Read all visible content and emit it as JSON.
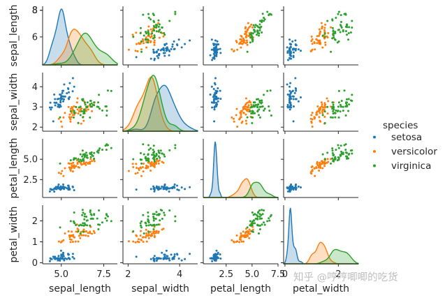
{
  "chart_data": {
    "type": "pairplot",
    "dataset": "iris",
    "variables": [
      "sepal_length",
      "sepal_width",
      "petal_length",
      "petal_width"
    ],
    "axis_labels": {
      "sepal_length": "sepal_length",
      "sepal_width": "sepal_width",
      "petal_length": "petal_length",
      "petal_width": "petal_width"
    },
    "ranges": {
      "sepal_length": [
        3.9,
        8.3
      ],
      "sepal_width": [
        1.8,
        4.7
      ],
      "petal_length": [
        0.3,
        7.5
      ],
      "petal_width": [
        -0.05,
        2.75
      ]
    },
    "yticks": {
      "sepal_length": [
        6,
        8
      ],
      "sepal_width": [
        2,
        3,
        4
      ],
      "petal_length": [
        2.5,
        5.0
      ],
      "petal_width": [
        0,
        1,
        2
      ]
    },
    "ytick_labels": {
      "sepal_length": [
        "6",
        "8"
      ],
      "sepal_width": [
        "2",
        "3",
        "4"
      ],
      "petal_length": [
        "2.5",
        "5.0"
      ],
      "petal_width": [
        "0",
        "1",
        "2"
      ]
    },
    "xticks": {
      "sepal_length": [
        5.0,
        7.5
      ],
      "sepal_width": [
        2,
        4
      ],
      "petal_length": [
        2.5,
        5.0,
        7.5
      ],
      "petal_width": [
        0,
        2
      ]
    },
    "xtick_labels": {
      "sepal_length": [
        "5.0",
        "7.5"
      ],
      "sepal_width": [
        "2",
        "4"
      ],
      "petal_length": [
        "2.5",
        "5.0",
        "7.5"
      ],
      "petal_width": [
        "0",
        "2"
      ]
    },
    "extra_tick_labels": [
      {
        "axis": "sepal_length_y",
        "value": 8,
        "label": "8"
      }
    ],
    "legend": {
      "title": "species",
      "entries": [
        "setosa",
        "versicolor",
        "virginica"
      ],
      "placement": "right"
    },
    "series": [
      {
        "name": "setosa",
        "color": "#1f77b4",
        "sepal_length": [
          5.1,
          4.9,
          4.7,
          4.6,
          5.0,
          5.4,
          4.6,
          5.0,
          4.4,
          4.9,
          5.4,
          4.8,
          4.8,
          4.3,
          5.8,
          5.7,
          5.4,
          5.1,
          5.7,
          5.1,
          5.4,
          5.1,
          4.6,
          5.1,
          4.8,
          5.0,
          5.0,
          5.2,
          5.2,
          4.7,
          4.8,
          5.4,
          5.2,
          5.5,
          4.9,
          5.0,
          5.5,
          4.9,
          4.4,
          5.1,
          5.0,
          4.5,
          4.4,
          5.0,
          5.1,
          4.8,
          5.1,
          4.6,
          5.3,
          5.0
        ],
        "sepal_width": [
          3.5,
          3.0,
          3.2,
          3.1,
          3.6,
          3.9,
          3.4,
          3.4,
          2.9,
          3.1,
          3.7,
          3.4,
          3.0,
          3.0,
          4.0,
          4.4,
          3.9,
          3.5,
          3.8,
          3.8,
          3.4,
          3.7,
          3.6,
          3.3,
          3.4,
          3.0,
          3.4,
          3.5,
          3.4,
          3.2,
          3.1,
          3.4,
          4.1,
          4.2,
          3.1,
          3.2,
          3.5,
          3.6,
          3.0,
          3.4,
          3.5,
          2.3,
          3.2,
          3.5,
          3.8,
          3.0,
          3.8,
          3.2,
          3.7,
          3.3
        ],
        "petal_length": [
          1.4,
          1.4,
          1.3,
          1.5,
          1.4,
          1.7,
          1.4,
          1.5,
          1.4,
          1.5,
          1.5,
          1.6,
          1.4,
          1.1,
          1.2,
          1.5,
          1.3,
          1.4,
          1.7,
          1.5,
          1.7,
          1.5,
          1.0,
          1.7,
          1.9,
          1.6,
          1.6,
          1.5,
          1.4,
          1.6,
          1.6,
          1.5,
          1.5,
          1.4,
          1.5,
          1.2,
          1.3,
          1.4,
          1.3,
          1.5,
          1.3,
          1.3,
          1.3,
          1.6,
          1.9,
          1.4,
          1.6,
          1.4,
          1.5,
          1.4
        ],
        "petal_width": [
          0.2,
          0.2,
          0.2,
          0.2,
          0.2,
          0.4,
          0.3,
          0.2,
          0.2,
          0.1,
          0.2,
          0.2,
          0.1,
          0.1,
          0.2,
          0.4,
          0.4,
          0.3,
          0.3,
          0.3,
          0.2,
          0.4,
          0.2,
          0.5,
          0.2,
          0.2,
          0.4,
          0.2,
          0.2,
          0.2,
          0.2,
          0.4,
          0.1,
          0.2,
          0.2,
          0.2,
          0.2,
          0.1,
          0.2,
          0.2,
          0.3,
          0.3,
          0.2,
          0.6,
          0.4,
          0.3,
          0.2,
          0.2,
          0.2,
          0.2
        ]
      },
      {
        "name": "versicolor",
        "color": "#ff7f0e",
        "sepal_length": [
          7.0,
          6.4,
          6.9,
          5.5,
          6.5,
          5.7,
          6.3,
          4.9,
          6.6,
          5.2,
          5.0,
          5.9,
          6.0,
          6.1,
          5.6,
          6.7,
          5.6,
          5.8,
          6.2,
          5.6,
          5.9,
          6.1,
          6.3,
          6.1,
          6.4,
          6.6,
          6.8,
          6.7,
          6.0,
          5.7,
          5.5,
          5.5,
          5.8,
          6.0,
          5.4,
          6.0,
          6.7,
          6.3,
          5.6,
          5.5,
          5.5,
          6.1,
          5.8,
          5.0,
          5.6,
          5.7,
          5.7,
          6.2,
          5.1,
          5.7
        ],
        "sepal_width": [
          3.2,
          3.2,
          3.1,
          2.3,
          2.8,
          2.8,
          3.3,
          2.4,
          2.9,
          2.7,
          2.0,
          3.0,
          2.2,
          2.9,
          2.9,
          3.1,
          3.0,
          2.7,
          2.2,
          2.5,
          3.2,
          2.8,
          2.5,
          2.8,
          2.9,
          3.0,
          2.8,
          3.0,
          2.9,
          2.6,
          2.4,
          2.4,
          2.7,
          2.7,
          3.0,
          3.4,
          3.1,
          2.3,
          3.0,
          2.5,
          2.6,
          3.0,
          2.6,
          2.3,
          2.7,
          3.0,
          2.9,
          2.9,
          2.5,
          2.8
        ],
        "petal_length": [
          4.7,
          4.5,
          4.9,
          4.0,
          4.6,
          4.5,
          4.7,
          3.3,
          4.6,
          3.9,
          3.5,
          4.2,
          4.0,
          4.7,
          3.6,
          4.4,
          4.5,
          4.1,
          4.5,
          3.9,
          4.8,
          4.0,
          4.9,
          4.7,
          4.3,
          4.4,
          4.8,
          5.0,
          4.5,
          3.5,
          3.8,
          3.7,
          3.9,
          5.1,
          4.5,
          4.5,
          4.7,
          4.4,
          4.1,
          4.0,
          4.4,
          4.6,
          4.0,
          3.3,
          4.2,
          4.2,
          4.2,
          4.3,
          3.0,
          4.1
        ],
        "petal_width": [
          1.4,
          1.5,
          1.5,
          1.3,
          1.5,
          1.3,
          1.6,
          1.0,
          1.3,
          1.4,
          1.0,
          1.5,
          1.0,
          1.4,
          1.3,
          1.4,
          1.5,
          1.0,
          1.5,
          1.1,
          1.8,
          1.3,
          1.5,
          1.2,
          1.3,
          1.4,
          1.4,
          1.7,
          1.5,
          1.0,
          1.1,
          1.0,
          1.2,
          1.6,
          1.5,
          1.6,
          1.5,
          1.3,
          1.3,
          1.3,
          1.2,
          1.4,
          1.2,
          1.0,
          1.3,
          1.2,
          1.3,
          1.3,
          1.1,
          1.3
        ]
      },
      {
        "name": "virginica",
        "color": "#2ca02c",
        "sepal_length": [
          6.3,
          5.8,
          7.1,
          6.3,
          6.5,
          7.6,
          4.9,
          7.3,
          6.7,
          7.2,
          6.5,
          6.4,
          6.8,
          5.7,
          5.8,
          6.4,
          6.5,
          7.7,
          7.7,
          6.0,
          6.9,
          5.6,
          7.7,
          6.3,
          6.7,
          7.2,
          6.2,
          6.1,
          6.4,
          7.2,
          7.4,
          7.9,
          6.4,
          6.3,
          6.1,
          7.7,
          6.3,
          6.4,
          6.0,
          6.9,
          6.7,
          6.9,
          5.8,
          6.8,
          6.7,
          6.7,
          6.3,
          6.5,
          6.2,
          5.9
        ],
        "sepal_width": [
          3.3,
          2.7,
          3.0,
          2.9,
          3.0,
          3.0,
          2.5,
          2.9,
          2.5,
          3.6,
          3.2,
          2.7,
          3.0,
          2.5,
          2.8,
          3.2,
          3.0,
          3.8,
          2.6,
          2.2,
          3.2,
          2.8,
          2.8,
          2.7,
          3.3,
          3.2,
          2.8,
          3.0,
          2.8,
          3.0,
          2.8,
          3.8,
          2.8,
          2.8,
          2.6,
          3.0,
          3.4,
          3.1,
          3.0,
          3.1,
          3.1,
          3.1,
          2.7,
          3.2,
          3.3,
          3.0,
          2.5,
          3.0,
          3.4,
          3.0
        ],
        "petal_length": [
          6.0,
          5.1,
          5.9,
          5.6,
          5.8,
          6.6,
          4.5,
          6.3,
          5.8,
          6.1,
          5.1,
          5.3,
          5.5,
          5.0,
          5.1,
          5.3,
          5.5,
          6.7,
          6.9,
          5.0,
          5.7,
          4.9,
          6.7,
          4.9,
          5.7,
          6.0,
          4.8,
          4.9,
          5.6,
          5.8,
          6.1,
          6.4,
          5.6,
          5.1,
          5.6,
          6.1,
          5.6,
          5.5,
          4.8,
          5.4,
          5.6,
          5.1,
          5.1,
          5.9,
          5.7,
          5.2,
          5.0,
          5.2,
          5.4,
          5.1
        ],
        "petal_width": [
          2.5,
          1.9,
          2.1,
          1.8,
          2.2,
          2.1,
          1.7,
          1.8,
          1.8,
          2.5,
          2.0,
          1.9,
          2.1,
          2.0,
          2.4,
          2.3,
          1.8,
          2.2,
          2.3,
          1.5,
          2.3,
          2.0,
          2.0,
          1.8,
          2.1,
          1.8,
          1.8,
          1.8,
          2.1,
          1.6,
          1.9,
          2.0,
          2.2,
          1.5,
          1.4,
          2.3,
          2.4,
          1.8,
          1.8,
          2.1,
          2.4,
          2.3,
          1.9,
          2.3,
          2.5,
          2.3,
          1.9,
          2.0,
          2.3,
          1.8
        ]
      }
    ]
  },
  "watermark": "知乎 @哼哼唧唧的吃货"
}
